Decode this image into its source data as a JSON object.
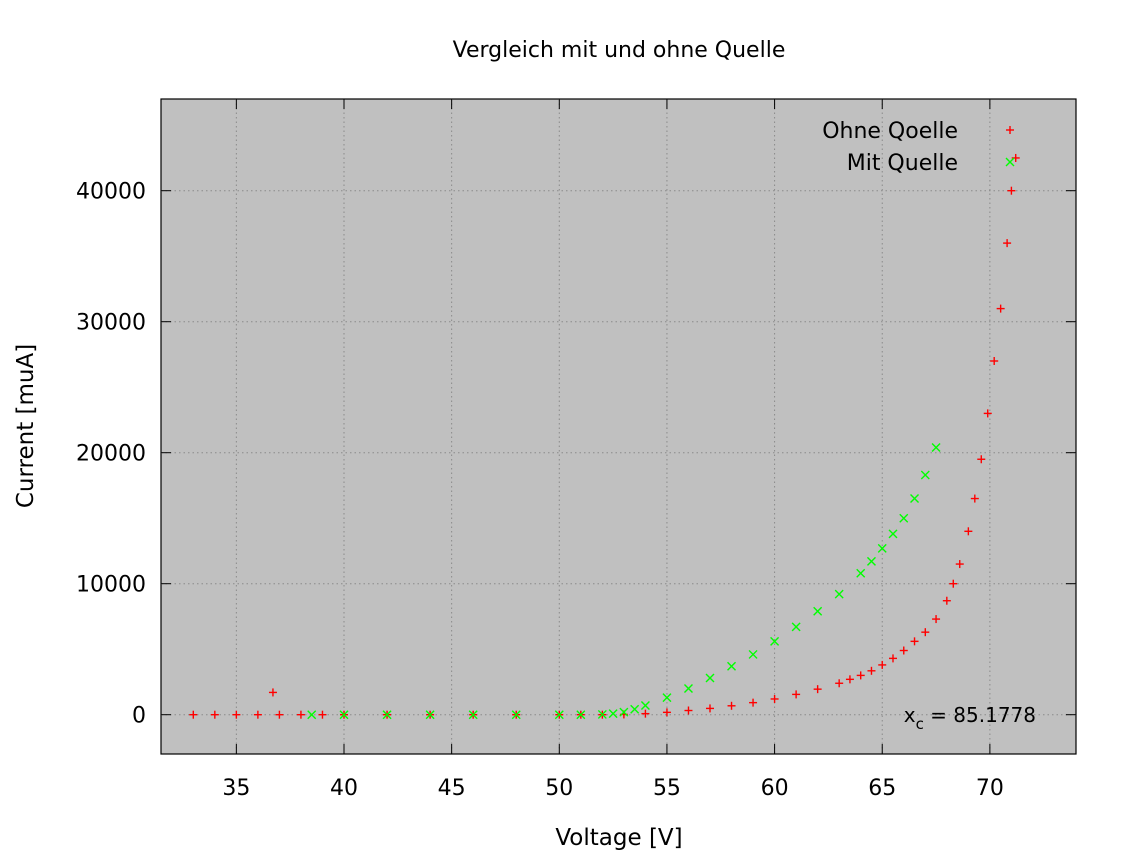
{
  "chart_data": {
    "type": "scatter",
    "title": "Vergleich mit und ohne Quelle",
    "xlabel": "Voltage [V]",
    "ylabel": "Current [muA]",
    "xlim": [
      31.5,
      74
    ],
    "ylim": [
      -3000,
      47000
    ],
    "xticks": [
      35,
      40,
      45,
      50,
      55,
      60,
      65,
      70
    ],
    "yticks": [
      0,
      10000,
      20000,
      30000,
      40000
    ],
    "grid": true,
    "background": "#c0c0c0",
    "legend_position": "top-right",
    "annotation": {
      "base": "x",
      "subscript": "c",
      "value": " = 85.1778"
    },
    "series": [
      {
        "name": "Ohne Qoelle",
        "marker": "+",
        "color": "#ff0000",
        "points": [
          [
            33.0,
            0
          ],
          [
            34.0,
            0
          ],
          [
            35.0,
            0
          ],
          [
            36.0,
            0
          ],
          [
            37.0,
            0
          ],
          [
            38.0,
            0
          ],
          [
            39.0,
            0
          ],
          [
            40.0,
            0
          ],
          [
            42.0,
            0
          ],
          [
            44.0,
            0
          ],
          [
            46.0,
            0
          ],
          [
            48.0,
            0
          ],
          [
            50.0,
            0
          ],
          [
            51.0,
            0
          ],
          [
            52.0,
            0
          ],
          [
            53.0,
            20
          ],
          [
            54.0,
            80
          ],
          [
            55.0,
            180
          ],
          [
            56.0,
            320
          ],
          [
            57.0,
            480
          ],
          [
            58.0,
            680
          ],
          [
            59.0,
            920
          ],
          [
            60.0,
            1200
          ],
          [
            61.0,
            1550
          ],
          [
            62.0,
            1950
          ],
          [
            63.0,
            2400
          ],
          [
            63.5,
            2700
          ],
          [
            64.0,
            3000
          ],
          [
            64.5,
            3350
          ],
          [
            65.0,
            3800
          ],
          [
            65.5,
            4300
          ],
          [
            66.0,
            4900
          ],
          [
            66.5,
            5600
          ],
          [
            67.0,
            6300
          ],
          [
            67.5,
            7300
          ],
          [
            68.0,
            8700
          ],
          [
            68.3,
            10000
          ],
          [
            68.6,
            11500
          ],
          [
            69.0,
            14000
          ],
          [
            69.3,
            16500
          ],
          [
            69.6,
            19500
          ],
          [
            69.9,
            23000
          ],
          [
            70.2,
            27000
          ],
          [
            70.5,
            31000
          ],
          [
            70.8,
            36000
          ],
          [
            71.0,
            40000
          ],
          [
            71.2,
            42500
          ],
          [
            36.7,
            1700
          ]
        ]
      },
      {
        "name": "Mit Quelle",
        "marker": "x",
        "color": "#00ff00",
        "points": [
          [
            38.5,
            0
          ],
          [
            40.0,
            0
          ],
          [
            42.0,
            0
          ],
          [
            44.0,
            0
          ],
          [
            46.0,
            0
          ],
          [
            48.0,
            0
          ],
          [
            50.0,
            0
          ],
          [
            51.0,
            0
          ],
          [
            52.0,
            20
          ],
          [
            52.5,
            80
          ],
          [
            53.0,
            200
          ],
          [
            53.5,
            420
          ],
          [
            54.0,
            700
          ],
          [
            55.0,
            1300
          ],
          [
            56.0,
            2000
          ],
          [
            57.0,
            2800
          ],
          [
            58.0,
            3700
          ],
          [
            59.0,
            4600
          ],
          [
            60.0,
            5600
          ],
          [
            61.0,
            6700
          ],
          [
            62.0,
            7900
          ],
          [
            63.0,
            9200
          ],
          [
            64.0,
            10800
          ],
          [
            64.5,
            11700
          ],
          [
            65.0,
            12700
          ],
          [
            65.5,
            13800
          ],
          [
            66.0,
            15000
          ],
          [
            66.5,
            16500
          ],
          [
            67.0,
            18300
          ],
          [
            67.5,
            20400
          ]
        ]
      }
    ]
  }
}
